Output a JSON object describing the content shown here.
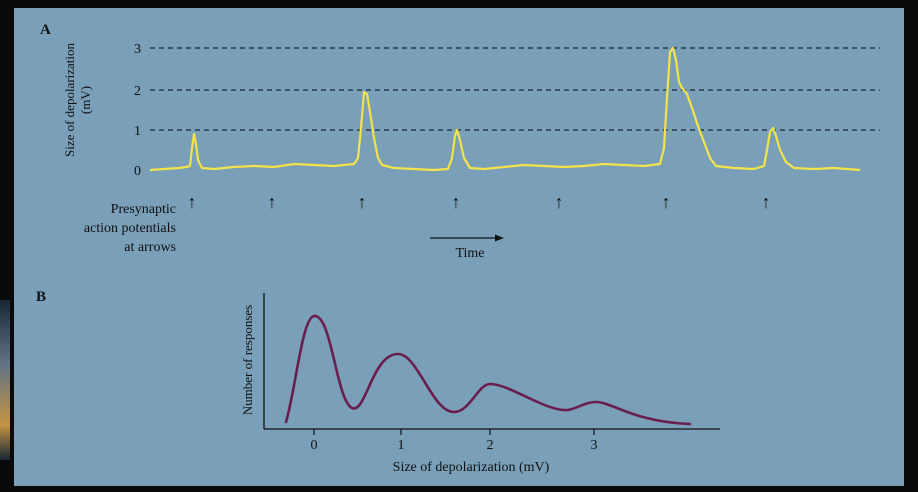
{
  "panel_a": {
    "label": "A",
    "ylabel_line1": "Size of depolarization",
    "ylabel_line2": "(mV)",
    "y_ticks": [
      "0",
      "1",
      "2",
      "3"
    ],
    "arrow_caption": [
      "Presynaptic",
      "action potentials",
      "at arrows"
    ],
    "time_label": "Time",
    "arrow_glyph": "↑"
  },
  "panel_b": {
    "label": "B",
    "ylabel": "Number of responses",
    "xlabel": "Size of depolarization (mV)",
    "x_ticks": [
      "0",
      "1",
      "2",
      "3"
    ]
  },
  "colors": {
    "panel_bg": "#7a9fb8",
    "trace": "#f2e44a",
    "distribution": "#6a1e4e",
    "dashed": "#1d2630"
  },
  "chart_data": [
    {
      "type": "line",
      "title": "",
      "xlabel": "Time",
      "ylabel": "Size of depolarization (mV)",
      "ylim": [
        0,
        3
      ],
      "grid": "dashed horizontal lines at 1, 2, 3",
      "events": [
        {
          "time_index": 1,
          "peak_mV": 0.9
        },
        {
          "time_index": 2,
          "peak_mV": 0.0
        },
        {
          "time_index": 3,
          "peak_mV": 2.0
        },
        {
          "time_index": 4,
          "peak_mV": 1.1
        },
        {
          "time_index": 5,
          "peak_mV": 0.0
        },
        {
          "time_index": 6,
          "peak_mV": 3.0
        },
        {
          "time_index": 7,
          "peak_mV": 1.1
        }
      ]
    },
    {
      "type": "line",
      "title": "",
      "xlabel": "Size of depolarization (mV)",
      "ylabel": "Number of responses",
      "x_ticks": [
        0,
        1,
        2,
        3
      ],
      "peaks": [
        {
          "x": 0,
          "relative_height": 1.0
        },
        {
          "x": 1,
          "relative_height": 0.62
        },
        {
          "x": 2,
          "relative_height": 0.33
        },
        {
          "x": 3,
          "relative_height": 0.19
        }
      ]
    }
  ]
}
